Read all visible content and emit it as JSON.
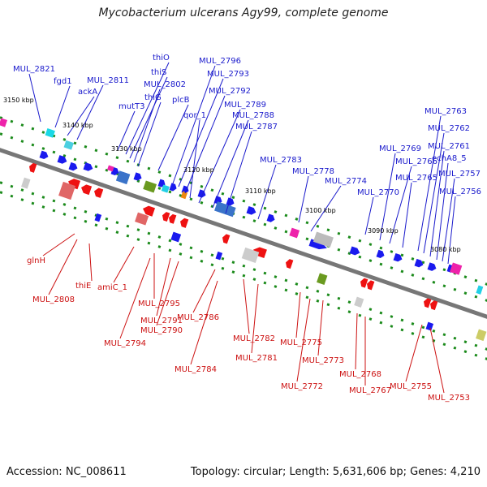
{
  "title": "Mycobacterium ulcerans Agy99, complete genome",
  "accession": "Accession: NC_008611",
  "topology": "Topology: circular; Length: 5,631,606 bp; Genes: 4,210",
  "colors": {
    "forward_label": "#1a1acc",
    "reverse_label": "#cc1111",
    "backbone": "#777777",
    "cds": "#1a1aee",
    "rna_red": "#ee1111",
    "dot": "#1a8a1a"
  },
  "ticks": [
    "3150 kbp",
    "3140 kbp",
    "3130 kbp",
    "3120 kbp",
    "3110 kbp",
    "3100 kbp",
    "3090 kbp",
    "3080 kbp"
  ],
  "top_labels": [
    "MUL_2821",
    "fgd1",
    "ackA",
    "MUL_2811",
    "thiO",
    "thiS",
    "MUL_2802",
    "thiG",
    "mutT3",
    "plcB",
    "MUL_2796",
    "MUL_2793",
    "MUL_2792",
    "qor_1",
    "MUL_2789",
    "MUL_2788",
    "MUL_2787",
    "MUL_2783",
    "MUL_2778",
    "MUL_2774",
    "MUL_2770",
    "MUL_2769",
    "MUL_2766",
    "MUL_2765",
    "MUL_2763",
    "MUL_2762",
    "MUL_2761",
    "echA8_5",
    "MUL_2757",
    "MUL_2756"
  ],
  "bottom_labels": [
    "glnH",
    "MUL_2808",
    "thiE",
    "amiC_1",
    "MUL_2795",
    "MUL_2791",
    "MUL_2790",
    "MUL_2794",
    "MUL_2786",
    "MUL_2784",
    "MUL_2782",
    "MUL_2781",
    "MUL_2775",
    "MUL_2773",
    "MUL_2772",
    "MUL_2768",
    "MUL_2767",
    "MUL_2755",
    "MUL_2753"
  ]
}
